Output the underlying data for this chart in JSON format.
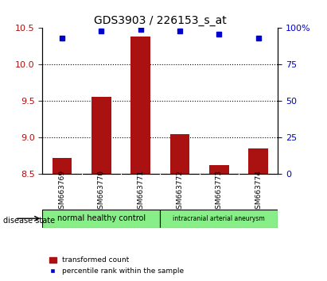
{
  "title": "GDS3903 / 226153_s_at",
  "samples": [
    "GSM663769",
    "GSM663770",
    "GSM663771",
    "GSM663772",
    "GSM663773",
    "GSM663774"
  ],
  "transformed_count": [
    8.72,
    9.56,
    10.38,
    9.05,
    8.62,
    8.85
  ],
  "percentile_rank": [
    93,
    98,
    99,
    98,
    96,
    93
  ],
  "ylim_left": [
    8.5,
    10.5
  ],
  "ylim_right": [
    0,
    100
  ],
  "yticks_left": [
    8.5,
    9.0,
    9.5,
    10.0,
    10.5
  ],
  "yticks_right": [
    0,
    25,
    50,
    75,
    100
  ],
  "ytick_labels_right": [
    "0",
    "25",
    "50",
    "75",
    "100%"
  ],
  "bar_color": "#aa1111",
  "marker_color": "#0000cc",
  "bar_bottom": 8.5,
  "group_labels": [
    "normal healthy control",
    "intracranial arterial aneurysm"
  ],
  "group_ranges": [
    [
      0,
      3
    ],
    [
      3,
      6
    ]
  ],
  "group_colors": [
    "#88ee88",
    "#88ee88"
  ],
  "disease_state_label": "disease state",
  "legend_items": [
    "transformed count",
    "percentile rank within the sample"
  ],
  "legend_colors": [
    "#aa1111",
    "#0000cc"
  ],
  "grid_color": "#000000",
  "background_color": "#ffffff",
  "tick_area_color": "#cccccc"
}
